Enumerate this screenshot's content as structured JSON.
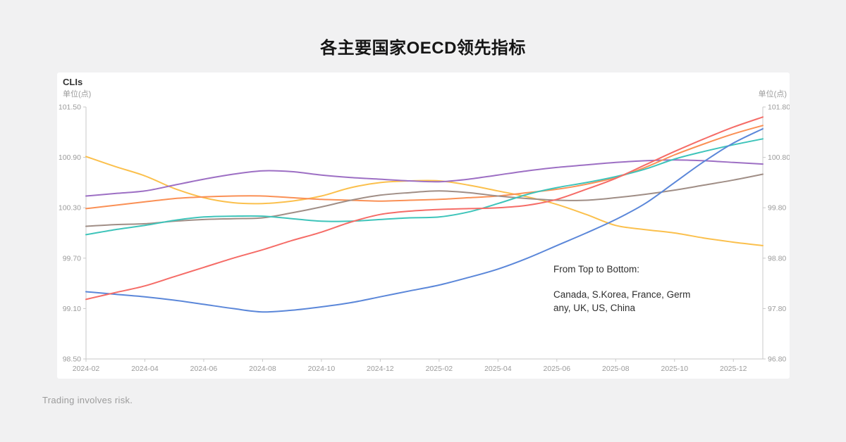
{
  "page": {
    "title": "各主要国家OECD领先指标",
    "footer": "Trading involves risk."
  },
  "chart": {
    "name_label": "CLIs",
    "unit_left": "单位(点)",
    "unit_right": "单位(点)",
    "note_title": "From Top to Bottom:",
    "note_body": "Canada, S.Korea, France, Germany, UK, US, China"
  },
  "chart_data": {
    "type": "line",
    "title": "各主要国家OECD领先指标",
    "xlabel": "",
    "ylabel": "单位(点)",
    "grid": false,
    "legend_position": "none",
    "annotation": "From Top to Bottom: Canada, S.Korea, France, Germany, UK, US, China",
    "x": [
      "2024-02",
      "2024-03",
      "2024-04",
      "2024-05",
      "2024-06",
      "2024-07",
      "2024-08",
      "2024-09",
      "2024-10",
      "2024-11",
      "2024-12",
      "2025-01",
      "2025-02",
      "2025-03",
      "2025-04",
      "2025-05",
      "2025-06",
      "2025-07",
      "2025-08",
      "2025-09",
      "2025-10",
      "2025-11",
      "2025-12",
      "2026-01"
    ],
    "x_tick_labels": [
      "2024-02",
      "2024-04",
      "2024-06",
      "2024-08",
      "2024-10",
      "2024-12",
      "2025-02",
      "2025-04",
      "2025-06",
      "2025-08",
      "2025-10",
      "2025-12"
    ],
    "y_axis_left": {
      "unit": "单位(点)",
      "range": [
        98.5,
        101.5
      ],
      "ticks": [
        "101.50",
        "100.90",
        "100.30",
        "99.70",
        "99.10",
        "98.50"
      ]
    },
    "y_axis_right": {
      "unit": "单位(点)",
      "range": [
        96.8,
        101.8
      ],
      "ticks": [
        "101.80",
        "100.80",
        "99.80",
        "98.80",
        "97.80",
        "96.80"
      ]
    },
    "series": [
      {
        "name": "Canada",
        "color": "#FBC04D",
        "values": [
          100.91,
          100.79,
          100.68,
          100.53,
          100.42,
          100.36,
          100.35,
          100.38,
          100.44,
          100.54,
          100.6,
          100.62,
          100.62,
          100.57,
          100.5,
          100.43,
          100.34,
          100.22,
          100.09,
          100.04,
          100.0,
          99.94,
          99.89,
          99.85
        ]
      },
      {
        "name": "S.Korea",
        "color": "#9D6FC4",
        "values": [
          100.44,
          100.47,
          100.5,
          100.57,
          100.64,
          100.7,
          100.74,
          100.73,
          100.69,
          100.66,
          100.64,
          100.62,
          100.61,
          100.64,
          100.69,
          100.74,
          100.78,
          100.81,
          100.84,
          100.86,
          100.87,
          100.86,
          100.84,
          100.82
        ]
      },
      {
        "name": "France",
        "color": "#FA9055",
        "values": [
          100.29,
          100.33,
          100.37,
          100.41,
          100.43,
          100.44,
          100.44,
          100.42,
          100.4,
          100.39,
          100.38,
          100.39,
          100.4,
          100.42,
          100.44,
          100.48,
          100.52,
          100.58,
          100.66,
          100.78,
          100.93,
          101.06,
          101.18,
          101.28
        ]
      },
      {
        "name": "Germany",
        "color": "#A08E86",
        "values": [
          100.08,
          100.1,
          100.11,
          100.14,
          100.16,
          100.17,
          100.18,
          100.24,
          100.31,
          100.39,
          100.45,
          100.48,
          100.5,
          100.48,
          100.44,
          100.41,
          100.39,
          100.39,
          100.42,
          100.46,
          100.51,
          100.57,
          100.63,
          100.7
        ]
      },
      {
        "name": "UK",
        "color": "#3EC4BA",
        "values": [
          99.98,
          100.04,
          100.09,
          100.15,
          100.19,
          100.2,
          100.2,
          100.17,
          100.14,
          100.14,
          100.16,
          100.18,
          100.19,
          100.25,
          100.35,
          100.46,
          100.54,
          100.6,
          100.67,
          100.76,
          100.88,
          100.97,
          101.05,
          101.12
        ]
      },
      {
        "name": "US",
        "color": "#5B87D9",
        "values": [
          99.3,
          99.27,
          99.24,
          99.2,
          99.15,
          99.1,
          99.06,
          99.08,
          99.12,
          99.17,
          99.24,
          99.31,
          99.38,
          99.47,
          99.57,
          99.7,
          99.85,
          100.0,
          100.16,
          100.35,
          100.6,
          100.85,
          101.07,
          101.24
        ]
      },
      {
        "name": "China",
        "color": "#F56C67",
        "values": [
          99.21,
          99.29,
          99.37,
          99.48,
          99.59,
          99.7,
          99.8,
          99.91,
          100.01,
          100.13,
          100.22,
          100.26,
          100.28,
          100.29,
          100.3,
          100.33,
          100.4,
          100.52,
          100.65,
          100.81,
          100.97,
          101.12,
          101.26,
          101.38
        ]
      }
    ]
  }
}
